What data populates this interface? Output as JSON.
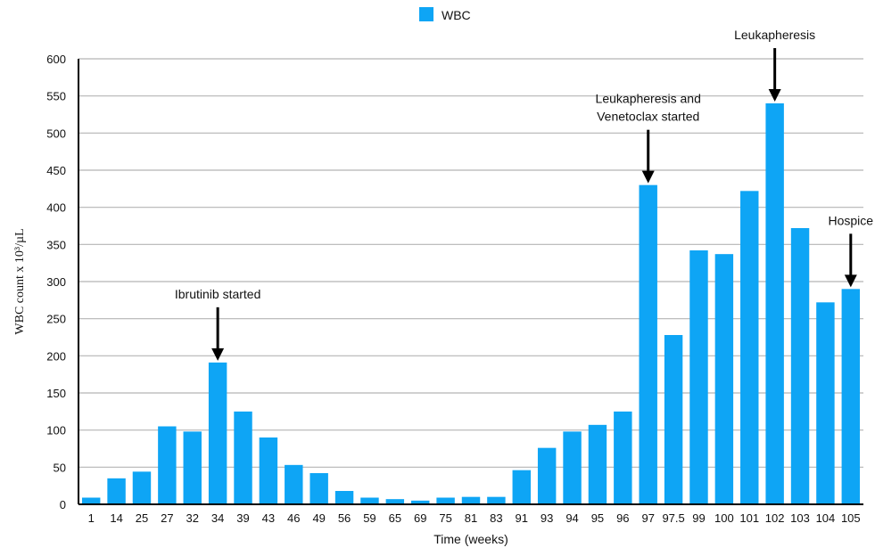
{
  "chart_data": {
    "type": "bar",
    "xlabel": "Time (weeks)",
    "ylabel": "WBC count x 10³/µL",
    "ylim": [
      0,
      600
    ],
    "yticks": [
      0,
      50,
      100,
      150,
      200,
      250,
      300,
      350,
      400,
      450,
      500,
      550,
      600
    ],
    "grid": true,
    "legend_position": "top-center",
    "categories": [
      "1",
      "14",
      "25",
      "27",
      "32",
      "34",
      "39",
      "43",
      "46",
      "49",
      "56",
      "59",
      "65",
      "69",
      "75",
      "81",
      "83",
      "91",
      "93",
      "94",
      "95",
      "96",
      "97",
      "97.5",
      "99",
      "100",
      "101",
      "102",
      "103",
      "104",
      "105"
    ],
    "series": [
      {
        "name": "WBC",
        "color": "#0ea5f5",
        "values": [
          9,
          35,
          44,
          105,
          98,
          191,
          125,
          90,
          53,
          42,
          18,
          9,
          7,
          5,
          9,
          10,
          10,
          46,
          76,
          98,
          107,
          125,
          430,
          228,
          342,
          337,
          422,
          540,
          372,
          272,
          290
        ]
      }
    ],
    "annotations": [
      {
        "id": "ibrutinib",
        "category": "34",
        "lines": [
          "Ibrutinib started"
        ]
      },
      {
        "id": "leuka-veneto",
        "category": "97",
        "lines": [
          "Leukapheresis and",
          "Venetoclax started"
        ]
      },
      {
        "id": "leuka",
        "category": "102",
        "lines": [
          "Leukapheresis"
        ]
      },
      {
        "id": "hospice",
        "category": "105",
        "lines": [
          "Hospice"
        ]
      }
    ]
  }
}
